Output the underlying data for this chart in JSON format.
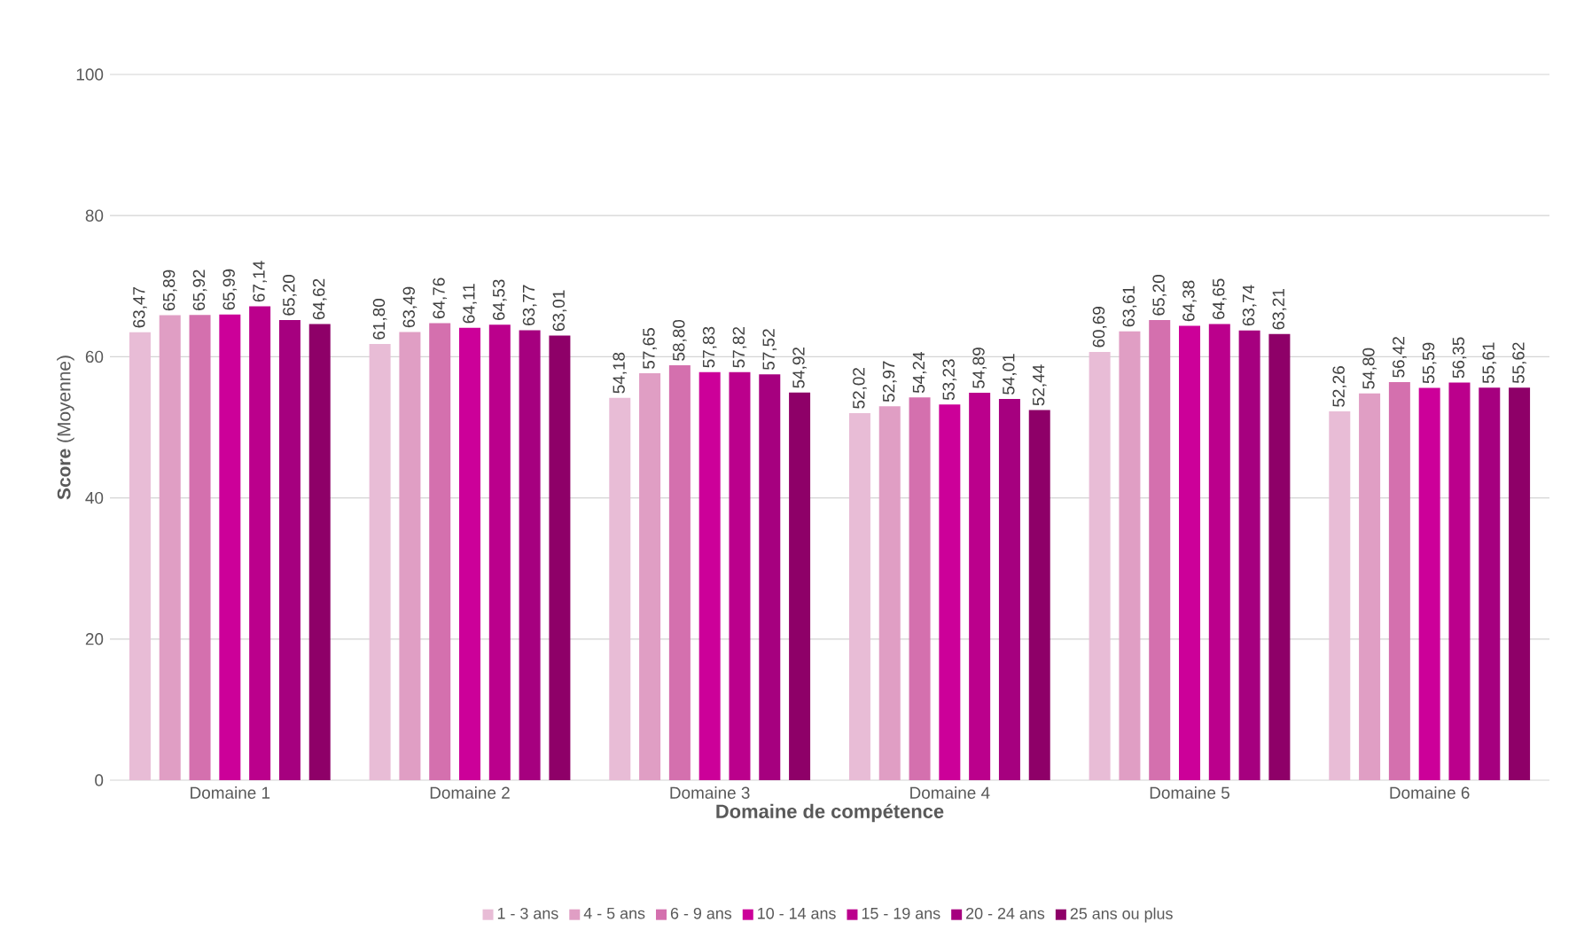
{
  "chart_data": {
    "type": "bar",
    "xlabel": "Domaine de compétence",
    "ylabel": "**Score** (Moyenne)",
    "categories": [
      "Domaine 1",
      "Domaine 2",
      "Domaine 3",
      "Domaine 4",
      "Domaine 5",
      "Domaine 6"
    ],
    "ylim": [
      0,
      100
    ],
    "yticks": [
      0,
      20,
      40,
      60,
      80,
      100
    ],
    "grid": "y",
    "legend": "bottom",
    "series": [
      {
        "name": "1 - 3 ans",
        "color": "#e8bcd6",
        "values": [
          63.47,
          61.8,
          54.18,
          52.02,
          60.69,
          52.26
        ],
        "value_labels": [
          "63,47",
          "61,80",
          "54,18",
          "52,02",
          "60,69",
          "52,26"
        ]
      },
      {
        "name": "4 - 5 ans",
        "color": "#e09ec4",
        "values": [
          65.89,
          63.49,
          57.65,
          52.97,
          63.61,
          54.8
        ],
        "value_labels": [
          "65,89",
          "63,49",
          "57,65",
          "52,97",
          "63,61",
          "54,80"
        ]
      },
      {
        "name": "6 - 9 ans",
        "color": "#d470ae",
        "values": [
          65.92,
          64.76,
          58.8,
          54.24,
          65.2,
          56.42
        ],
        "value_labels": [
          "65,92",
          "64,76",
          "58,80",
          "54,24",
          "65,20",
          "56,42"
        ]
      },
      {
        "name": "10 - 14 ans",
        "color": "#cc0099",
        "values": [
          65.99,
          64.11,
          57.83,
          53.23,
          64.38,
          55.59
        ],
        "value_labels": [
          "65,99",
          "64,11",
          "57,83",
          "53,23",
          "64,38",
          "55,59"
        ]
      },
      {
        "name": "15 - 19 ans",
        "color": "#bb008c",
        "values": [
          67.14,
          64.53,
          57.82,
          54.89,
          64.65,
          56.35
        ],
        "value_labels": [
          "67,14",
          "64,53",
          "57,82",
          "54,89",
          "64,65",
          "56,35"
        ]
      },
      {
        "name": "20 - 24 ans",
        "color": "#a6007f",
        "values": [
          65.2,
          63.77,
          57.52,
          54.01,
          63.74,
          55.61
        ],
        "value_labels": [
          "65,20",
          "63,77",
          "57,52",
          "54,01",
          "63,74",
          "55,61"
        ]
      },
      {
        "name": "25 ans ou plus",
        "color": "#8e0068",
        "values": [
          64.62,
          63.01,
          54.92,
          52.44,
          63.21,
          55.62
        ],
        "value_labels": [
          "64,62",
          "63,01",
          "54,92",
          "52,44",
          "63,21",
          "55,62"
        ]
      }
    ]
  }
}
